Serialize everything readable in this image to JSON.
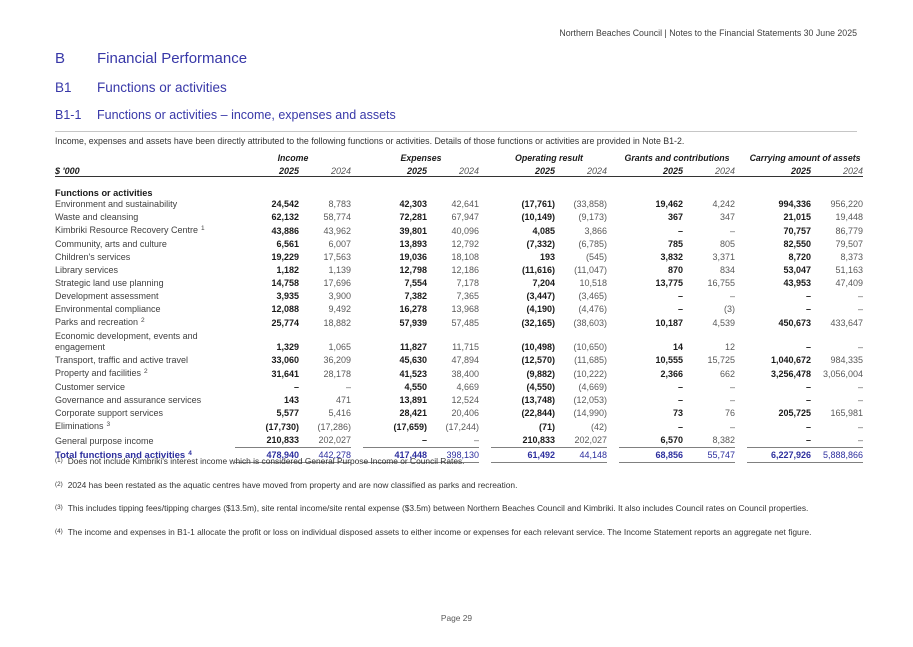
{
  "colors": {
    "heading_blue": "#3838a8",
    "total_blue": "#2d2f9e"
  },
  "header": {
    "right_text": "Northern Beaches Council | Notes to the Financial Statements 30 June 2025"
  },
  "headings": [
    {
      "number": "B",
      "title": "Financial Performance"
    },
    {
      "number": "B1",
      "title": "Functions or activities"
    },
    {
      "number": "B1-1",
      "title": "Functions or activities – income, expenses and assets"
    }
  ],
  "intro": "Income, expenses and assets have been directly attributed to the following functions or activities. Details of those functions or activities are provided in Note B1-2.",
  "table": {
    "unit_label": "$ '000",
    "groups": [
      "Income",
      "Expenses",
      "Operating result",
      "Grants and contributions",
      "Carrying amount of assets"
    ],
    "years": [
      "2025",
      "2024"
    ],
    "section_label": "Functions or activities",
    "rows": [
      {
        "label": "Environment and sustainability",
        "sup": "",
        "values": [
          "24,542",
          "8,783",
          "42,303",
          "42,641",
          "(17,761)",
          "(33,858)",
          "19,462",
          "4,242",
          "994,336",
          "956,220"
        ]
      },
      {
        "label": "Waste and cleansing",
        "sup": "",
        "values": [
          "62,132",
          "58,774",
          "72,281",
          "67,947",
          "(10,149)",
          "(9,173)",
          "367",
          "347",
          "21,015",
          "19,448"
        ]
      },
      {
        "label": "Kimbriki Resource Recovery Centre",
        "sup": "1",
        "values": [
          "43,886",
          "43,962",
          "39,801",
          "40,096",
          "4,085",
          "3,866",
          "–",
          "–",
          "70,757",
          "86,779"
        ]
      },
      {
        "label": "Community, arts and culture",
        "sup": "",
        "values": [
          "6,561",
          "6,007",
          "13,893",
          "12,792",
          "(7,332)",
          "(6,785)",
          "785",
          "805",
          "82,550",
          "79,507"
        ]
      },
      {
        "label": "Children's services",
        "sup": "",
        "values": [
          "19,229",
          "17,563",
          "19,036",
          "18,108",
          "193",
          "(545)",
          "3,832",
          "3,371",
          "8,720",
          "8,373"
        ]
      },
      {
        "label": "Library services",
        "sup": "",
        "values": [
          "1,182",
          "1,139",
          "12,798",
          "12,186",
          "(11,616)",
          "(11,047)",
          "870",
          "834",
          "53,047",
          "51,163"
        ]
      },
      {
        "label": "Strategic land use planning",
        "sup": "",
        "values": [
          "14,758",
          "17,696",
          "7,554",
          "7,178",
          "7,204",
          "10,518",
          "13,775",
          "16,755",
          "43,953",
          "47,409"
        ]
      },
      {
        "label": "Development assessment",
        "sup": "",
        "values": [
          "3,935",
          "3,900",
          "7,382",
          "7,365",
          "(3,447)",
          "(3,465)",
          "–",
          "–",
          "–",
          "–"
        ]
      },
      {
        "label": "Environmental compliance",
        "sup": "",
        "values": [
          "12,088",
          "9,492",
          "16,278",
          "13,968",
          "(4,190)",
          "(4,476)",
          "–",
          "(3)",
          "–",
          "–"
        ]
      },
      {
        "label": "Parks and recreation",
        "sup": "2",
        "values": [
          "25,774",
          "18,882",
          "57,939",
          "57,485",
          "(32,165)",
          "(38,603)",
          "10,187",
          "4,539",
          "450,673",
          "433,647"
        ]
      },
      {
        "label": "Economic development, events and engagement",
        "sup": "",
        "values": [
          "1,329",
          "1,065",
          "11,827",
          "11,715",
          "(10,498)",
          "(10,650)",
          "14",
          "12",
          "–",
          "–"
        ]
      },
      {
        "label": "Transport, traffic and active travel",
        "sup": "",
        "values": [
          "33,060",
          "36,209",
          "45,630",
          "47,894",
          "(12,570)",
          "(11,685)",
          "10,555",
          "15,725",
          "1,040,672",
          "984,335"
        ]
      },
      {
        "label": "Property and facilities",
        "sup": "2",
        "values": [
          "31,641",
          "28,178",
          "41,523",
          "38,400",
          "(9,882)",
          "(10,222)",
          "2,366",
          "662",
          "3,256,478",
          "3,056,004"
        ]
      },
      {
        "label": "Customer service",
        "sup": "",
        "values": [
          "–",
          "–",
          "4,550",
          "4,669",
          "(4,550)",
          "(4,669)",
          "–",
          "–",
          "–",
          "–"
        ]
      },
      {
        "label": "Governance and assurance services",
        "sup": "",
        "values": [
          "143",
          "471",
          "13,891",
          "12,524",
          "(13,748)",
          "(12,053)",
          "–",
          "–",
          "–",
          "–"
        ]
      },
      {
        "label": "Corporate support services",
        "sup": "",
        "values": [
          "5,577",
          "5,416",
          "28,421",
          "20,406",
          "(22,844)",
          "(14,990)",
          "73",
          "76",
          "205,725",
          "165,981"
        ]
      },
      {
        "label": "Eliminations",
        "sup": "3",
        "values": [
          "(17,730)",
          "(17,286)",
          "(17,659)",
          "(17,244)",
          "(71)",
          "(42)",
          "–",
          "–",
          "–",
          "–"
        ]
      },
      {
        "label": "General purpose income",
        "sup": "",
        "values": [
          "210,833",
          "202,027",
          "–",
          "–",
          "210,833",
          "202,027",
          "6,570",
          "8,382",
          "–",
          "–"
        ]
      }
    ],
    "total": {
      "label": "Total functions and activities",
      "sup": "4",
      "values": [
        "478,940",
        "442,278",
        "417,448",
        "398,130",
        "61,492",
        "44,148",
        "68,856",
        "55,747",
        "6,227,926",
        "5,888,866"
      ]
    }
  },
  "footnotes": [
    {
      "marker": "(1)",
      "text": "Does not include Kimbriki's interest income which is considered General Purpose Income or Council Rates."
    },
    {
      "marker": "(2)",
      "text": "2024 has been restated as the aquatic centres have moved from property and are now classified as parks and recreation."
    },
    {
      "marker": "(3)",
      "text": "This includes tipping fees/tipping charges ($13.5m), site rental income/site rental expense ($3.5m) between Northern Beaches Council and Kimbriki.  It also includes Council rates on Council properties."
    },
    {
      "marker": "(4)",
      "text": "The income and expenses in B1-1 allocate the profit or loss on individual disposed assets to either income or expenses for each relevant service.  The Income Statement reports an aggregate net figure."
    }
  ],
  "footer": {
    "page_label": "Page 29"
  }
}
